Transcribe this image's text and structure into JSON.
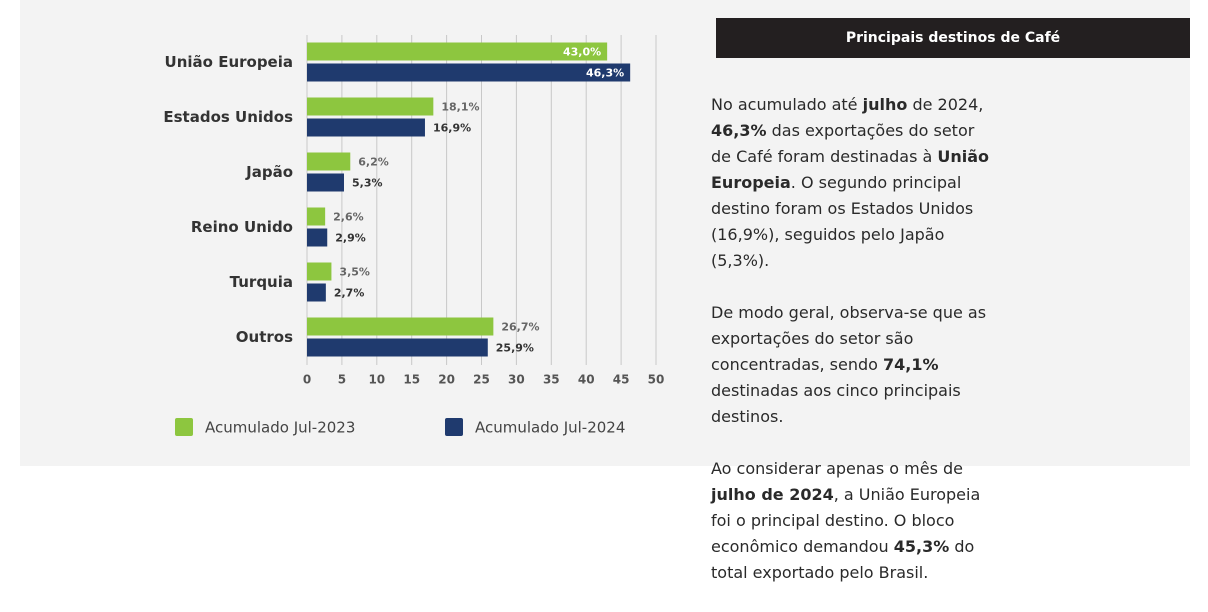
{
  "chart_data": {
    "type": "barh",
    "categories": [
      "União Europeia",
      "Estados Unidos",
      "Japão",
      "Reino Unido",
      "Turquia",
      "Outros"
    ],
    "series": [
      {
        "name": "Acumulado Jul-2023",
        "color": "#8dc63f",
        "values": [
          43.0,
          18.1,
          6.2,
          2.6,
          3.5,
          26.7
        ],
        "value_labels": [
          "43,0%",
          "18,1%",
          "6,2%",
          "2,6%",
          "3,5%",
          "26,7%"
        ]
      },
      {
        "name": "Acumulado Jul-2024",
        "color": "#1f3a6e",
        "values": [
          46.3,
          16.9,
          5.3,
          2.9,
          2.7,
          25.9
        ],
        "value_labels": [
          "46,3%",
          "16,9%",
          "5,3%",
          "2,9%",
          "2,7%",
          "25,9%"
        ]
      }
    ],
    "xlim": [
      0,
      50
    ],
    "xticks": [
      0,
      5,
      10,
      15,
      20,
      25,
      30,
      35,
      40,
      45,
      50
    ],
    "grid": true,
    "legend": "bottom"
  },
  "panel": {
    "title": "Principais destinos de Café",
    "paragraphs": [
      [
        "No acumulado até ",
        "julho",
        " de 2024, ",
        "46,3%",
        " das exportações do setor de Café foram destinadas à ",
        "União Europeia",
        ". O segundo principal destino foram os Estados Unidos (16,9%), seguidos pelo Japão (5,3%)."
      ],
      [
        "De modo geral, observa-se que as exportações do setor são concentradas, sendo ",
        "74,1%",
        " destinadas aos cinco principais destinos."
      ],
      [
        "Ao considerar apenas o mês de ",
        "julho de 2024",
        ", a União Europeia foi o principal destino. O bloco econômico demandou ",
        "45,3%",
        " do total exportado pelo Brasil."
      ]
    ]
  }
}
